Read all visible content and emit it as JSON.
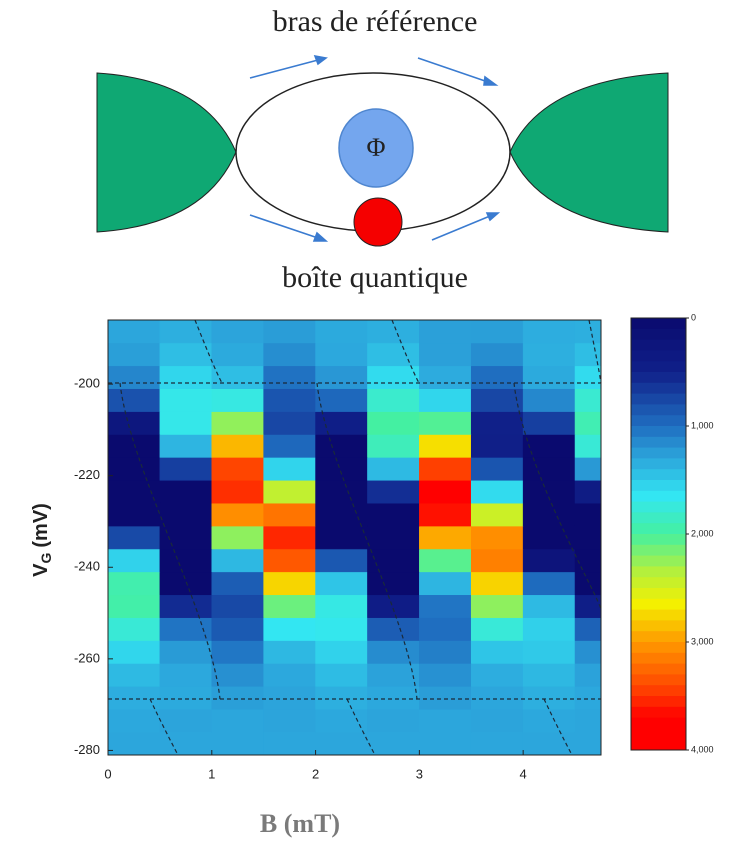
{
  "diagram": {
    "top_label": "bras de référence",
    "bottom_label": "boîte quantique",
    "phi_label": "Φ"
  },
  "chart_data": {
    "type": "heatmap",
    "xlabel": "B (mT)",
    "ylabel": {
      "main": "V",
      "sub": "G",
      "rest": "(mV)"
    },
    "xlim": [
      0,
      4.75
    ],
    "ylim": [
      -281,
      -186
    ],
    "xticks": [
      0,
      1,
      2,
      3,
      4
    ],
    "yticks": [
      -280,
      -260,
      -240,
      -220,
      -200
    ],
    "x_edges": [
      0,
      0.5,
      1,
      1.5,
      2,
      2.5,
      3,
      3.5,
      4,
      4.5,
      4.75
    ],
    "y_edges": [
      -281,
      -276,
      -271,
      -266,
      -261,
      -256,
      -251,
      -246,
      -241,
      -236,
      -231,
      -226,
      -221,
      -216,
      -211,
      -206,
      -201,
      -196,
      -191,
      -186
    ],
    "z": [
      [
        1300,
        1300,
        1300,
        1300,
        1300,
        1300,
        1300,
        1300,
        1300,
        1300
      ],
      [
        1310,
        1290,
        1300,
        1290,
        1310,
        1290,
        1300,
        1290,
        1310,
        1300
      ],
      [
        1340,
        1320,
        1260,
        1290,
        1350,
        1310,
        1250,
        1300,
        1350,
        1310
      ],
      [
        1410,
        1310,
        1180,
        1310,
        1420,
        1280,
        1190,
        1340,
        1400,
        1280
      ],
      [
        1560,
        1240,
        1050,
        1400,
        1540,
        1160,
        1090,
        1470,
        1490,
        1180
      ],
      [
        1770,
        1030,
        870,
        1650,
        1670,
        890,
        1000,
        1760,
        1530,
        920
      ],
      [
        1960,
        570,
        760,
        2120,
        1710,
        420,
        1040,
        2230,
        1410,
        450
      ],
      [
        1940,
        0,
        890,
        2760,
        1470,
        0,
        1380,
        2770,
        980,
        0
      ],
      [
        1540,
        0,
        1400,
        3330,
        860,
        0,
        2060,
        3130,
        230,
        0
      ],
      [
        770,
        0,
        2230,
        3540,
        0,
        0,
        2940,
        3060,
        0,
        0
      ],
      [
        0,
        0,
        3060,
        3190,
        0,
        0,
        3630,
        2460,
        0,
        0
      ],
      [
        0,
        0,
        3510,
        2410,
        0,
        590,
        3820,
        1590,
        0,
        400
      ],
      [
        0,
        700,
        3420,
        1550,
        0,
        1410,
        3440,
        840,
        0,
        1230
      ],
      [
        0,
        1380,
        2880,
        960,
        0,
        1890,
        2720,
        470,
        10,
        1770
      ],
      [
        290,
        1690,
        2240,
        750,
        450,
        1990,
        2040,
        490,
        700,
        1920
      ],
      [
        820,
        1690,
        1720,
        840,
        960,
        1810,
        1560,
        750,
        1140,
        1790
      ],
      [
        1130,
        1560,
        1430,
        1020,
        1220,
        1590,
        1330,
        1000,
        1320,
        1590
      ],
      [
        1260,
        1430,
        1320,
        1170,
        1310,
        1430,
        1270,
        1170,
        1350,
        1430
      ],
      [
        1300,
        1350,
        1290,
        1250,
        1320,
        1350,
        1270,
        1260,
        1340,
        1350
      ]
    ],
    "zlim": [
      0,
      4000
    ],
    "zticks": [
      0,
      {
        "value": 1000,
        "label": "1,000"
      },
      {
        "value": 2000,
        "label": "2,000"
      },
      {
        "value": 3000,
        "label": "3,000"
      },
      {
        "value": 4000,
        "label": "4,000"
      }
    ],
    "colormap": [
      {
        "value": 0,
        "color": "#0a0a6e"
      },
      {
        "value": 500,
        "color": "#10208a"
      },
      {
        "value": 1000,
        "color": "#1f6ec0"
      },
      {
        "value": 1300,
        "color": "#2ca6dc"
      },
      {
        "value": 1650,
        "color": "#33e6f2"
      },
      {
        "value": 2000,
        "color": "#45f0a0"
      },
      {
        "value": 2350,
        "color": "#b4f03c"
      },
      {
        "value": 2650,
        "color": "#f4f000"
      },
      {
        "value": 3000,
        "color": "#ff9a00"
      },
      {
        "value": 3400,
        "color": "#ff4a00"
      },
      {
        "value": 3700,
        "color": "#ff0000"
      },
      {
        "value": 4000,
        "color": "#ff0000"
      }
    ]
  }
}
